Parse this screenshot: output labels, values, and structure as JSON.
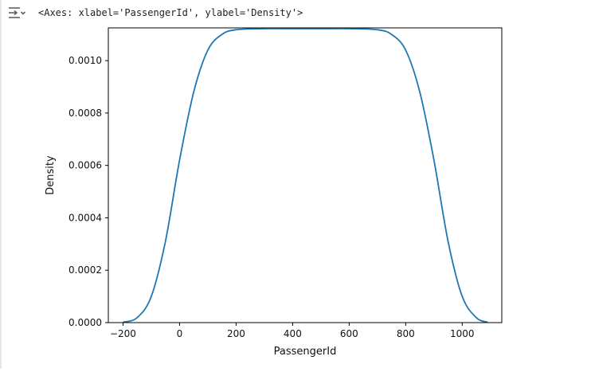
{
  "output": {
    "repr_text": "<Axes: xlabel='PassengerId', ylabel='Density'>",
    "toggle_icon": "output-collapse-icon"
  },
  "chart_data": {
    "type": "line",
    "xlabel": "PassengerId",
    "ylabel": "Density",
    "xlim": [
      -252,
      1140
    ],
    "ylim": [
      0,
      0.001125
    ],
    "xticks": [
      -200,
      0,
      200,
      400,
      600,
      800,
      1000
    ],
    "xtick_labels": [
      "−200",
      "0",
      "200",
      "400",
      "600",
      "800",
      "1000"
    ],
    "yticks": [
      0,
      0.0002,
      0.0004,
      0.0006,
      0.0008,
      0.001
    ],
    "ytick_labels": [
      "0.0000",
      "0.0002",
      "0.0004",
      "0.0006",
      "0.0008",
      "0.0010"
    ],
    "grid": false,
    "series": [
      {
        "color": "#1f77b4",
        "x": [
          -200,
          -150,
          -100,
          -50,
          0,
          50,
          100,
          150,
          200,
          300,
          400,
          500,
          600,
          700,
          750,
          800,
          850,
          900,
          950,
          1000,
          1050,
          1090
        ],
        "y": [
          1.5e-06,
          1.9e-05,
          0.0001,
          0.00031,
          0.00062,
          0.00088,
          0.00104,
          0.0011,
          0.001118,
          0.001122,
          0.001122,
          0.001122,
          0.001122,
          0.001118,
          0.0011,
          0.00104,
          0.00088,
          0.00062,
          0.00031,
          0.0001,
          1.9e-05,
          1.5e-06
        ]
      }
    ]
  }
}
